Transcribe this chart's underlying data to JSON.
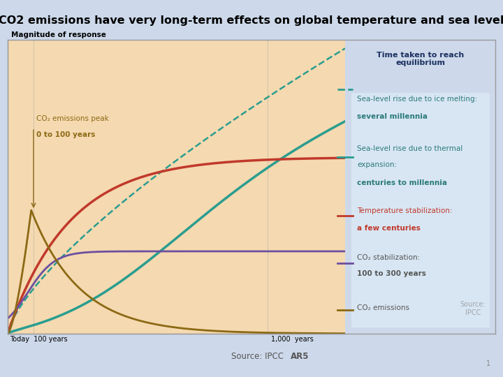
{
  "title": "CO2 emissions have very long-term effects on global temperature and sea level",
  "source_text": "Source: IPCC ",
  "source_bold": "AR5",
  "bg_outer": "#cdd9ea",
  "bg_plot": "#f5d9b0",
  "bg_right_panel": "#c8d8ec",
  "bg_inner_panel": "#d8e6f3",
  "ylabel": "Magnitude of response",
  "title_fontsize": 11.5,
  "right_panel_title": "Time taken to reach\nequilibrium",
  "right_panel_title_color": "#1a3060",
  "co2_emissions_label_line1": "CO₂ emissions peak",
  "co2_emissions_label_line2": "0 to 100 years",
  "co2_emissions_label_color": "#8b6914",
  "xlabel_left": "Today  100 years",
  "xlabel_right": "1,000  years",
  "curves": {
    "sea_ice_dashed": {
      "color": "#2a9d8f",
      "linestyle": "--",
      "linewidth": 1.8
    },
    "sea_thermal": {
      "color": "#2a9d8f",
      "linestyle": "-",
      "linewidth": 2.5
    },
    "temperature": {
      "color": "#c0392b",
      "linestyle": "-",
      "linewidth": 2.5
    },
    "co2_stab": {
      "color": "#6b4fa0",
      "linestyle": "-",
      "linewidth": 2.0
    },
    "co2_emissions": {
      "color": "#8b6914",
      "linestyle": "-",
      "linewidth": 2.0
    }
  },
  "annot_sea_ice_normal": "Sea-level rise due to ice melting:",
  "annot_sea_ice_bold": "several millennia",
  "annot_sea_ice_color": "#2a7a7a",
  "annot_sea_thermal_normal1": "Sea-level rise due to thermal",
  "annot_sea_thermal_normal2": "expansion:",
  "annot_sea_thermal_bold": "centuries to millennia",
  "annot_sea_thermal_color": "#2a7a7a",
  "annot_temp_normal": "Temperature stabilization:",
  "annot_temp_bold": "a few centuries",
  "annot_temp_color": "#c0392b",
  "annot_co2s_normal": "CO₂ stabilization:",
  "annot_co2s_bold": "100 to 300 years",
  "annot_co2s_color": "#555555",
  "annot_co2e_normal": "CO₂ emissions",
  "annot_co2e_color": "#555555",
  "source_ipcc_color": "#888888",
  "source_ipcc_text": "Source:\nIPCC"
}
